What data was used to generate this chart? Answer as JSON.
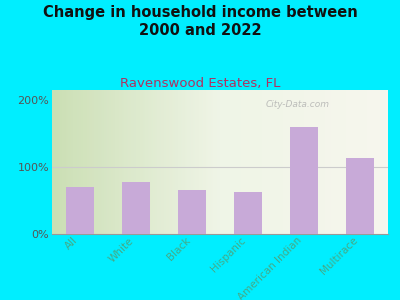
{
  "title": "Change in household income between\n2000 and 2022",
  "subtitle": "Ravenswood Estates, FL",
  "categories": [
    "All",
    "White",
    "Black",
    "Hispanic",
    "American Indian",
    "Multirace"
  ],
  "values": [
    70,
    78,
    65,
    63,
    160,
    113
  ],
  "bar_color": "#c8aad8",
  "background_outer": "#00eeff",
  "title_fontsize": 10.5,
  "title_color": "#111111",
  "subtitle_fontsize": 9.5,
  "subtitle_color": "#b03060",
  "tick_label_color": "#44aa88",
  "ytick_label_color": "#555555",
  "ylabel_ticks": [
    "0%",
    "100%",
    "200%"
  ],
  "ylim": [
    0,
    215
  ],
  "yticks": [
    0,
    100,
    200
  ],
  "watermark": "City-Data.com",
  "grid_color": "#cccccc",
  "plot_bg_color": "#eef5df"
}
